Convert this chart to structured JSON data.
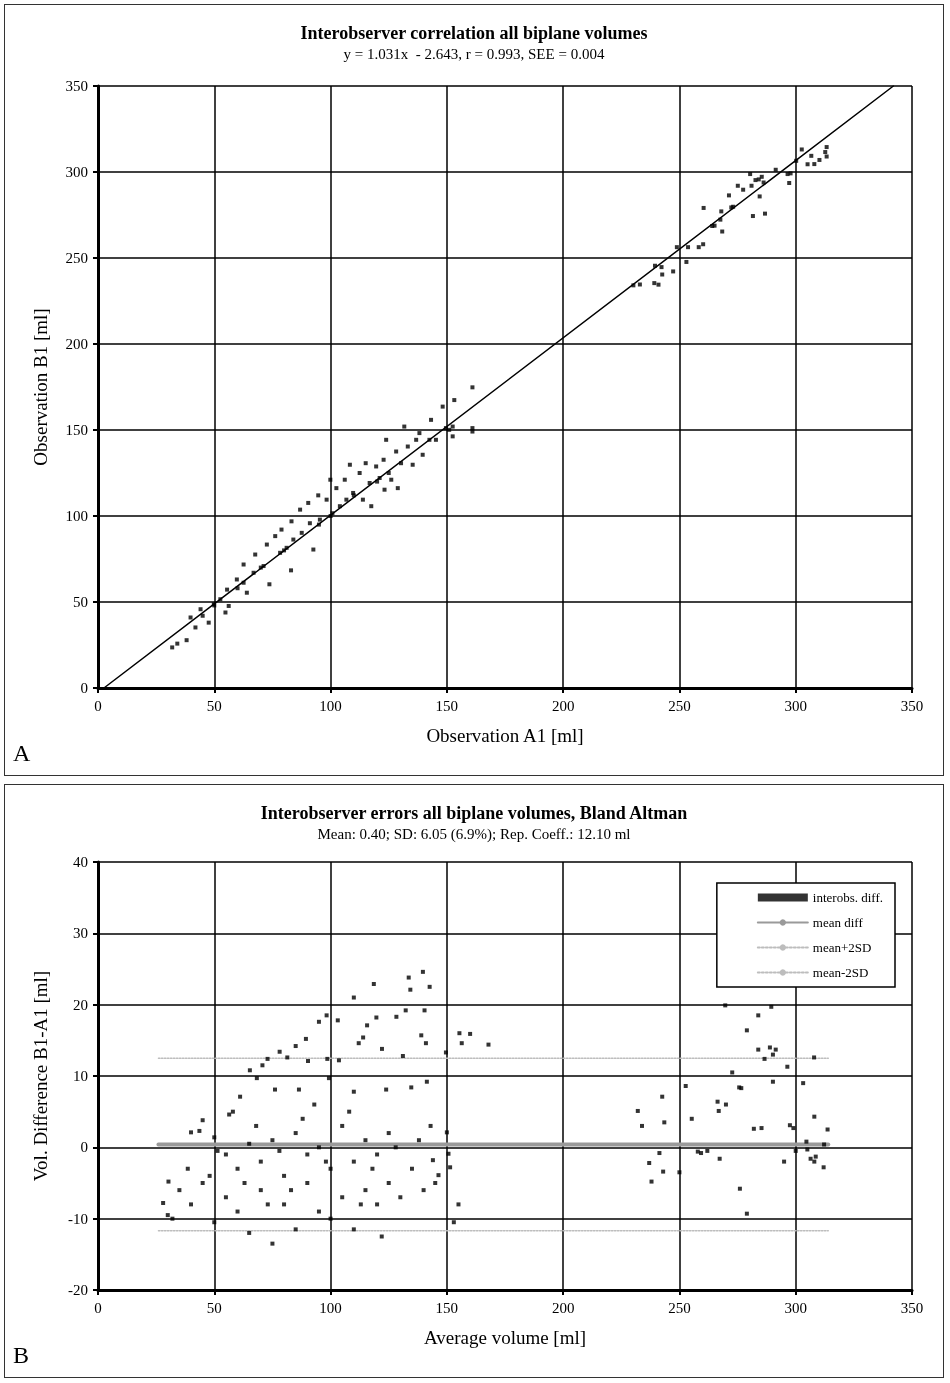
{
  "chart_data": [
    {
      "type": "scatter",
      "title": "Interobserver correlation all biplane volumes",
      "subtitle": "y = 1.031x  - 2.643, r = 0.993, SEE = 0.004",
      "xlabel": "Observation A1 [ml]",
      "ylabel": "Observation B1 [ml]",
      "annotations": [
        "A"
      ],
      "xlim": [
        0,
        350
      ],
      "xticks": [
        0,
        50,
        100,
        150,
        200,
        250,
        300,
        350
      ],
      "ylim": [
        0,
        350
      ],
      "yticks": [
        0,
        50,
        100,
        150,
        200,
        250,
        300,
        350
      ],
      "grid": true,
      "legend": false,
      "marker": "square",
      "series": [
        {
          "color": "#000000",
          "x": [
            230.2,
            233.0,
            239.2,
            241.0,
            239.5,
            242.3,
            242.6,
            247.3,
            248.9,
            253.0,
            253.7,
            258.3,
            260.2,
            260.4,
            264.1,
            265.1,
            267.6,
            268.4,
            268.0,
            271.3,
            272.3,
            273.1,
            275.1,
            277.4,
            280.4,
            281.0,
            281.6,
            282.7,
            284.1,
            285.4,
            284.5,
            286.2,
            286.8,
            291.4,
            296.5,
            297.8,
            297.2,
            300.2,
            302.6,
            305.1,
            306.7,
            308.0,
            310.2,
            312.7,
            313.3,
            313.3,
            31.9,
            34.1,
            38.1,
            39.8,
            41.9,
            44.1,
            47.6,
            49.8,
            52.6,
            54.8,
            56.2,
            55.5,
            59.7,
            62.6,
            64.0,
            62.6,
            66.9,
            67.6,
            71.2,
            73.7,
            72.6,
            76.2,
            78.3,
            78.9,
            81.1,
            83.2,
            84.0,
            83.0,
            86.9,
            87.6,
            90.4,
            91.1,
            92.6,
            94.7,
            95.4,
            98.3,
            99.9,
            100.8,
            102.5,
            104.0,
            106.1,
            106.8,
            108.3,
            109.7,
            112.5,
            113.9,
            115.1,
            116.8,
            117.5,
            119.6,
            121.1,
            122.8,
            123.2,
            123.9,
            126.1,
            128.2,
            128.9,
            130.3,
            131.7,
            133.2,
            135.3,
            136.8,
            138.2,
            139.6,
            142.5,
            143.2,
            145.3,
            148.2,
            149.6,
            151.0,
            152.5,
            153.2,
            161.0,
            161.0,
            161.0,
            152.5,
            70,
            95,
            100,
            110,
            60,
            80,
            120,
            125,
            50,
            45
          ],
          "values": [
            234.1,
            234.6,
            235.4,
            234.5,
            245.5,
            244.7,
            240.4,
            242.2,
            256.3,
            247.7,
            256.3,
            256.3,
            258.0,
            279.1,
            268.6,
            268.8,
            272.3,
            265.4,
            277.1,
            286.4,
            279.4,
            279.8,
            292.0,
            289.7,
            298.8,
            292.0,
            274.4,
            295.3,
            295.7,
            297.2,
            285.8,
            293.9,
            275.8,
            301.3,
            298.8,
            299.2,
            293.6,
            306.5,
            313.1,
            304.5,
            309.4,
            304.6,
            307.0,
            311.6,
            314.5,
            309.0,
            23.6,
            25.8,
            27.8,
            41.0,
            35.2,
            45.8,
            38.0,
            48.7,
            51.6,
            43.9,
            47.7,
            57.2,
            63.1,
            61.2,
            55.4,
            71.8,
            67.0,
            77.6,
            70.9,
            60.3,
            83.4,
            88.3,
            78.6,
            92.1,
            81.5,
            96.9,
            86.3,
            68.4,
            103.7,
            90.2,
            107.6,
            95.8,
            80.5,
            112.0,
            97.9,
            109.5,
            121.1,
            101.6,
            116.2,
            105.7,
            121.1,
            109.5,
            129.8,
            113.4,
            125.0,
            109.5,
            130.7,
            119.2,
            105.7,
            128.8,
            122.1,
            132.7,
            115.3,
            144.3,
            121.1,
            137.5,
            116.2,
            130.7,
            152.0,
            140.4,
            129.8,
            144.3,
            148.2,
            135.6,
            144.3,
            155.9,
            144.3,
            163.6,
            151.1,
            150.1,
            152.0,
            167.4,
            174.8,
            151.1,
            149.1,
            146.3,
            70,
            95,
            100,
            112,
            58,
            80,
            120,
            125,
            48,
            42
          ]
        },
        {
          "type": "line",
          "marker": "none",
          "color": "#000000",
          "x": [
            2.56,
            342
          ],
          "values": [
            0,
            350
          ]
        }
      ]
    },
    {
      "type": "scatter",
      "title": "Interobserver errors all biplane volumes, Bland Altman",
      "subtitle": "Mean: 0.40; SD: 6.05 (6.9%); Rep. Coeff.: 12.10 ml",
      "xlabel": "Average volume [ml]",
      "ylabel": "Vol. Difference B1-A1 [ml]",
      "annotations": [
        "B"
      ],
      "xlim": [
        0,
        350
      ],
      "xticks": [
        0,
        50,
        100,
        150,
        200,
        250,
        300,
        350
      ],
      "ylim": [
        -20,
        40
      ],
      "yticks": [
        -20,
        -10,
        0,
        10,
        20,
        30,
        40
      ],
      "grid": true,
      "legend": "top right",
      "marker": "square",
      "series": [
        {
          "name": "interobs. diff.",
          "color": "#000000",
          "x": [
            30.3,
            38.6,
            40.0,
            43.6,
            45.0,
            50.0,
            51.4,
            56.4,
            61.1,
            65.3,
            68.3,
            70.7,
            72.9,
            76.1,
            78.1,
            81.4,
            85.0,
            86.4,
            89.4,
            90.3,
            95.0,
            98.3,
            98.6,
            99.3,
            103.1,
            103.6,
            110.0,
            110.0,
            112.1,
            114.0,
            115.7,
            118.6,
            119.7,
            122.1,
            123.9,
            128.3,
            131.1,
            132.3,
            133.6,
            134.3,
            134.7,
            139.7,
            140.4,
            141.0,
            141.4,
            142.6,
            139.0,
            149.6,
            150.0,
            150.7,
            155.4,
            156.4,
            160.0,
            167.9,
            144.0,
            151.4,
            146.4,
            28,
            30,
            32,
            35,
            40,
            45,
            50,
            55,
            60,
            65,
            70,
            75,
            80,
            85,
            90,
            95,
            100,
            105,
            110,
            115,
            120,
            122,
            125,
            130,
            135,
            140,
            145,
            153,
            155,
            60,
            70,
            80,
            90,
            100,
            110,
            120,
            65,
            75,
            85,
            95,
            105,
            115,
            125,
            55,
            48,
            58,
            68,
            78,
            88,
            98,
            108,
            118,
            128,
            138,
            143,
            93,
            83,
            73,
            63,
            113,
            269.7,
            283.9,
            289.5,
            279.0,
            283.9,
            288.9,
            291.4,
            290.2,
            286.6,
            307.9,
            296.4,
            272.7,
            252.7,
            275.7,
            276.6,
            290.2,
            303.2,
            242.6,
            232.1,
            266.4,
            266.9,
            270.0,
            233.9,
            243.5,
            255.3,
            285.3,
            297.5,
            299.0,
            308.0,
            313.7,
            304.6,
            312.2,
            241.4,
            257.9,
            259.3,
            267.3,
            306.4,
            308.6,
            237,
            238,
            243,
            250,
            262,
            276,
            279,
            282,
            295,
            300,
            308,
            312,
            305
          ],
          "values": [
            -4.8,
            -3.0,
            2.1,
            2.3,
            3.8,
            1.4,
            -0.5,
            4.6,
            7.1,
            10.8,
            9.7,
            11.5,
            12.4,
            8.1,
            13.4,
            12.6,
            14.2,
            8.1,
            15.2,
            12.1,
            17.6,
            18.5,
            12.4,
            9.7,
            17.8,
            12.2,
            21.0,
            7.8,
            14.6,
            15.4,
            17.1,
            22.9,
            18.2,
            13.8,
            8.1,
            18.3,
            12.8,
            19.2,
            23.8,
            22.1,
            8.4,
            24.6,
            19.2,
            14.6,
            9.2,
            22.5,
            15.7,
            13.3,
            2.1,
            -0.9,
            16.0,
            14.6,
            15.9,
            14.4,
            -1.8,
            -2.8,
            -3.9,
            -7.8,
            -9.5,
            -10,
            -6,
            -8,
            -5,
            -10.5,
            -7,
            -9,
            -12,
            -6,
            -13.5,
            -8,
            -11.5,
            -5,
            -9,
            -10,
            -7,
            -11.5,
            -6,
            -8,
            -12.5,
            -5,
            -7,
            -3,
            -6,
            -5,
            -10.5,
            -8,
            -3,
            -2,
            -4,
            -1,
            -3,
            -2,
            -1,
            0.5,
            1,
            2,
            0,
            3,
            1,
            2,
            -1,
            -4,
            5,
            3,
            -0.5,
            4,
            -2,
            5,
            -3,
            0,
            1,
            3,
            6,
            -6,
            -8,
            -5,
            -8,
            19.9,
            18.5,
            19.7,
            16.4,
            13.7,
            14.0,
            13.7,
            13.0,
            12.4,
            12.6,
            11.3,
            10.5,
            8.6,
            8.4,
            8.3,
            9.2,
            9.0,
            7.1,
            5.1,
            6.4,
            5.1,
            6.0,
            3.0,
            3.5,
            4.0,
            2.7,
            3.1,
            2.7,
            4.3,
            2.5,
            0.8,
            0.4,
            -0.8,
            -0.6,
            -0.8,
            -1.6,
            -1.6,
            -1.3,
            -2.2,
            -4.8,
            -3.4,
            -3.5,
            -0.5,
            -5.8,
            -9.3,
            2.6,
            -2,
            -0.5,
            -2,
            -2.8,
            -0.3
          ]
        },
        {
          "name": "mean diff",
          "type": "line",
          "marker": "none",
          "line_style": "solid",
          "color": "#9a9a9a",
          "x": [
            26,
            314
          ],
          "values": [
            0.4,
            0.4
          ]
        },
        {
          "name": "mean+2SD",
          "type": "line",
          "marker": "none",
          "line_style": "dotted",
          "color": "#bdbdbd",
          "x": [
            26,
            314
          ],
          "values": [
            12.5,
            12.5
          ]
        },
        {
          "name": "mean-2SD",
          "type": "line",
          "marker": "none",
          "line_style": "dotted",
          "color": "#bdbdbd",
          "x": [
            26,
            314
          ],
          "values": [
            -11.7,
            -11.7
          ]
        }
      ]
    }
  ]
}
